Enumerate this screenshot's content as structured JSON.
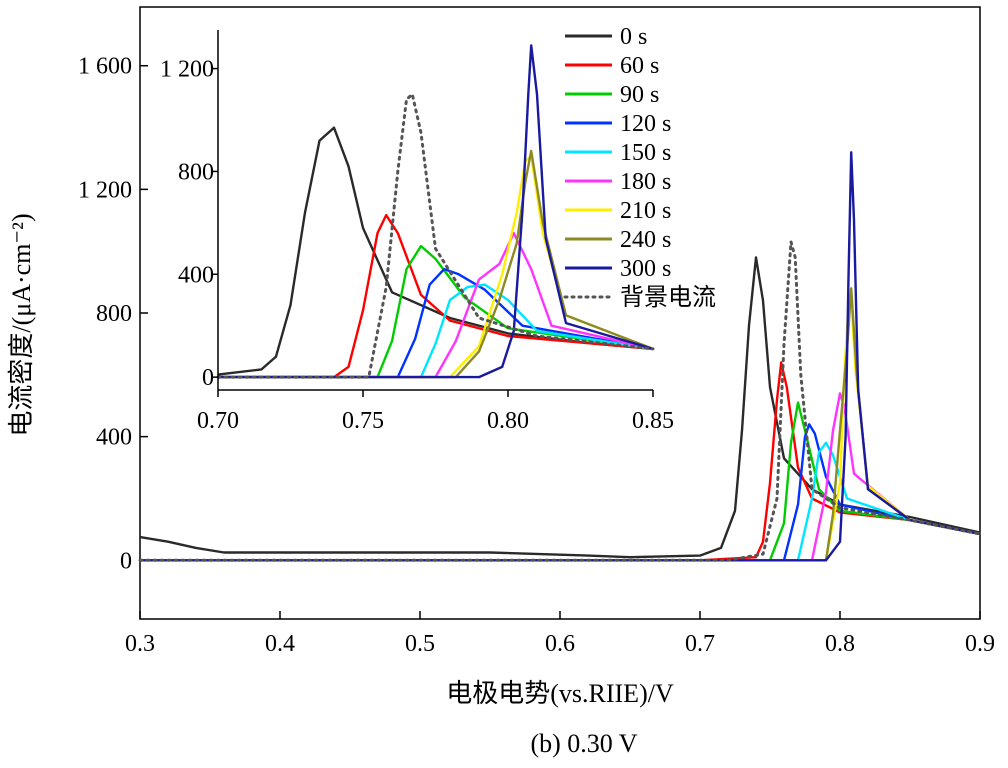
{
  "chart_data": [
    {
      "type": "line",
      "title": "",
      "caption": "(b) 0.30 V",
      "xlabel": "电极电势(vs.RIIE)/V",
      "ylabel": "电流密度/(μA·cm⁻²)",
      "xlim": [
        0.3,
        0.9
      ],
      "ylim": [
        -190,
        1790
      ],
      "x_ticks": [
        "0.3",
        "0.4",
        "0.5",
        "0.6",
        "0.7",
        "0.8",
        "0.9"
      ],
      "y_ticks": [
        "0",
        "400",
        "800",
        "1 200",
        "1 600"
      ],
      "grid": false,
      "legend_position": "top-right (inside inset)",
      "series": [
        {
          "name": "0 s",
          "color": "#2a2a2a",
          "style": "solid",
          "x": [
            0.3,
            0.32,
            0.34,
            0.36,
            0.45,
            0.55,
            0.62,
            0.65,
            0.7,
            0.715,
            0.725,
            0.73,
            0.735,
            0.74,
            0.745,
            0.75,
            0.76,
            0.78,
            0.8,
            0.85,
            0.9
          ],
          "y": [
            75,
            60,
            40,
            25,
            25,
            25,
            15,
            10,
            15,
            40,
            160,
            420,
            760,
            980,
            840,
            560,
            330,
            230,
            180,
            140,
            90
          ]
        },
        {
          "name": "60 s",
          "color": "#ff0000",
          "style": "solid",
          "x": [
            0.3,
            0.7,
            0.74,
            0.745,
            0.75,
            0.755,
            0.758,
            0.762,
            0.77,
            0.78,
            0.8,
            0.85,
            0.9
          ],
          "y": [
            0,
            0,
            10,
            60,
            250,
            520,
            640,
            560,
            300,
            200,
            155,
            130,
            85
          ]
        },
        {
          "name": "90 s",
          "color": "#00cc00",
          "style": "solid",
          "x": [
            0.3,
            0.75,
            0.76,
            0.765,
            0.77,
            0.775,
            0.785,
            0.8,
            0.85,
            0.9
          ],
          "y": [
            0,
            0,
            120,
            380,
            510,
            420,
            230,
            160,
            130,
            85
          ]
        },
        {
          "name": "120 s",
          "color": "#0033ff",
          "style": "solid",
          "x": [
            0.3,
            0.76,
            0.77,
            0.775,
            0.778,
            0.782,
            0.79,
            0.8,
            0.85,
            0.9
          ],
          "y": [
            0,
            0,
            180,
            400,
            440,
            410,
            270,
            180,
            130,
            85
          ]
        },
        {
          "name": "150 s",
          "color": "#00e5ff",
          "style": "solid",
          "x": [
            0.3,
            0.77,
            0.78,
            0.785,
            0.79,
            0.795,
            0.805,
            0.85,
            0.9
          ],
          "y": [
            0,
            0,
            200,
            350,
            380,
            340,
            200,
            130,
            85
          ]
        },
        {
          "name": "180 s",
          "color": "#ff33ff",
          "style": "solid",
          "x": [
            0.3,
            0.78,
            0.79,
            0.795,
            0.8,
            0.803,
            0.81,
            0.85,
            0.9
          ],
          "y": [
            0,
            0,
            220,
            420,
            540,
            500,
            280,
            130,
            85
          ]
        },
        {
          "name": "210 s",
          "color": "#ffee00",
          "style": "solid",
          "x": [
            0.3,
            0.79,
            0.8,
            0.803,
            0.806,
            0.808,
            0.811,
            0.82,
            0.85,
            0.9
          ],
          "y": [
            0,
            0,
            250,
            600,
            820,
            850,
            620,
            240,
            130,
            85
          ]
        },
        {
          "name": "240 s",
          "color": "#8c8a22",
          "style": "solid",
          "x": [
            0.3,
            0.79,
            0.795,
            0.8,
            0.805,
            0.808,
            0.812,
            0.82,
            0.85,
            0.9
          ],
          "y": [
            0,
            0,
            150,
            420,
            680,
            880,
            600,
            230,
            130,
            85
          ]
        },
        {
          "name": "300 s",
          "color": "#1a1aa0",
          "style": "solid",
          "x": [
            0.3,
            0.79,
            0.8,
            0.804,
            0.806,
            0.808,
            0.81,
            0.813,
            0.82,
            0.85,
            0.9
          ],
          "y": [
            0,
            0,
            60,
            400,
            900,
            1320,
            1100,
            550,
            230,
            130,
            85
          ]
        },
        {
          "name": "背景电流",
          "color": "#555555",
          "style": "dotted",
          "x": [
            0.3,
            0.72,
            0.745,
            0.755,
            0.76,
            0.765,
            0.768,
            0.772,
            0.78,
            0.8,
            0.85,
            0.9
          ],
          "y": [
            0,
            0,
            20,
            200,
            700,
            1030,
            980,
            600,
            230,
            170,
            130,
            85
          ]
        }
      ]
    },
    {
      "type": "line",
      "role": "inset",
      "title": "",
      "xlabel": "",
      "ylabel": "",
      "xlim": [
        0.7,
        0.85
      ],
      "ylim": [
        -50,
        1350
      ],
      "x_ticks": [
        "0.70",
        "0.75",
        "0.80",
        "0.85"
      ],
      "y_ticks": [
        "0",
        "400",
        "800",
        "1 200"
      ],
      "grid": false,
      "series": [
        {
          "name": "0 s",
          "color": "#2a2a2a",
          "style": "solid",
          "x": [
            0.7,
            0.715,
            0.72,
            0.725,
            0.73,
            0.735,
            0.74,
            0.745,
            0.75,
            0.76,
            0.78,
            0.8,
            0.83,
            0.85
          ],
          "y": [
            10,
            30,
            80,
            280,
            640,
            920,
            970,
            820,
            580,
            330,
            230,
            170,
            130,
            110
          ]
        },
        {
          "name": "60 s",
          "color": "#ff0000",
          "style": "solid",
          "x": [
            0.7,
            0.74,
            0.745,
            0.75,
            0.755,
            0.758,
            0.762,
            0.77,
            0.78,
            0.8,
            0.85
          ],
          "y": [
            0,
            0,
            40,
            260,
            560,
            630,
            560,
            320,
            220,
            160,
            110
          ]
        },
        {
          "name": "90 s",
          "color": "#00cc00",
          "style": "solid",
          "x": [
            0.7,
            0.755,
            0.76,
            0.765,
            0.77,
            0.775,
            0.785,
            0.8,
            0.85
          ],
          "y": [
            0,
            0,
            140,
            420,
            510,
            460,
            310,
            190,
            110
          ]
        },
        {
          "name": "120 s",
          "color": "#0033ff",
          "style": "solid",
          "x": [
            0.7,
            0.762,
            0.768,
            0.773,
            0.778,
            0.783,
            0.792,
            0.805,
            0.85
          ],
          "y": [
            0,
            0,
            150,
            360,
            420,
            400,
            340,
            200,
            110
          ]
        },
        {
          "name": "150 s",
          "color": "#00e5ff",
          "style": "solid",
          "x": [
            0.7,
            0.77,
            0.775,
            0.78,
            0.786,
            0.792,
            0.8,
            0.81,
            0.85
          ],
          "y": [
            0,
            0,
            130,
            300,
            350,
            360,
            300,
            180,
            110
          ]
        },
        {
          "name": "180 s",
          "color": "#ff33ff",
          "style": "solid",
          "x": [
            0.7,
            0.775,
            0.782,
            0.79,
            0.797,
            0.802,
            0.808,
            0.815,
            0.85
          ],
          "y": [
            0,
            0,
            140,
            380,
            440,
            560,
            420,
            200,
            110
          ]
        },
        {
          "name": "210 s",
          "color": "#ffee00",
          "style": "solid",
          "x": [
            0.7,
            0.78,
            0.79,
            0.798,
            0.803,
            0.806,
            0.808,
            0.812,
            0.82,
            0.85
          ],
          "y": [
            0,
            0,
            120,
            400,
            640,
            840,
            860,
            560,
            240,
            110
          ]
        },
        {
          "name": "240 s",
          "color": "#8c8a22",
          "style": "solid",
          "x": [
            0.7,
            0.782,
            0.79,
            0.797,
            0.803,
            0.806,
            0.808,
            0.812,
            0.82,
            0.85
          ],
          "y": [
            0,
            0,
            100,
            300,
            520,
            760,
            880,
            600,
            240,
            110
          ]
        },
        {
          "name": "300 s",
          "color": "#1a1aa0",
          "style": "solid",
          "x": [
            0.7,
            0.79,
            0.798,
            0.802,
            0.805,
            0.807,
            0.808,
            0.81,
            0.813,
            0.82,
            0.85
          ],
          "y": [
            0,
            0,
            40,
            180,
            650,
            1100,
            1290,
            1100,
            540,
            210,
            110
          ]
        },
        {
          "name": "背景电流",
          "color": "#555555",
          "style": "dotted",
          "x": [
            0.7,
            0.752,
            0.758,
            0.762,
            0.765,
            0.767,
            0.77,
            0.775,
            0.79,
            0.81,
            0.85
          ],
          "y": [
            0,
            0,
            350,
            800,
            1080,
            1100,
            950,
            500,
            230,
            160,
            110
          ]
        }
      ]
    }
  ]
}
